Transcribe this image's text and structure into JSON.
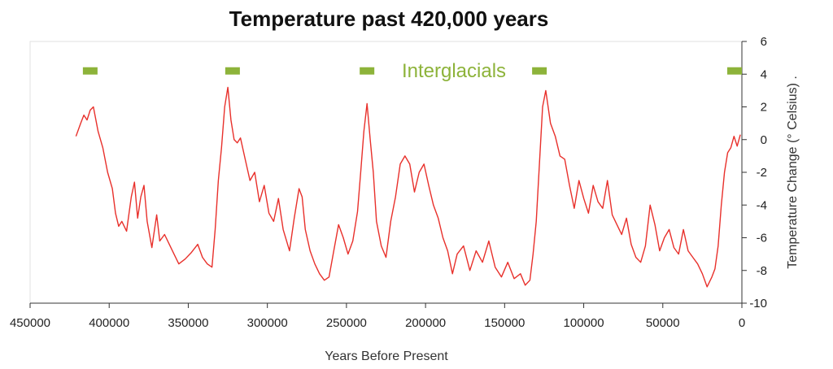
{
  "chart_data": {
    "type": "line",
    "title": "Temperature past 420,000 years",
    "xlabel": "Years Before Present",
    "ylabel": "Temperature Change (° Celsius) .",
    "x_reversed": true,
    "xlim": [
      450000,
      0
    ],
    "ylim": [
      -10,
      6
    ],
    "xticks": [
      450000,
      400000,
      350000,
      300000,
      250000,
      200000,
      150000,
      100000,
      50000,
      0
    ],
    "xtick_labels": [
      "450000",
      "400000",
      "350000",
      "300000",
      "250000",
      "200000",
      "150000",
      "100000",
      "50000",
      "0"
    ],
    "yticks": [
      6,
      4,
      2,
      0,
      -2,
      -4,
      -6,
      -8,
      -10
    ],
    "ytick_labels": [
      "6",
      "4",
      "2",
      "0",
      "-2",
      "-4",
      "-6",
      "-8",
      "-10"
    ],
    "y_axis_side": "right",
    "grid": false,
    "line_color": "#e8302b",
    "annotation": {
      "text": "Interglacials",
      "color": "#8db33a"
    },
    "interglacial_markers": [
      412000,
      322000,
      237000,
      128000,
      4500
    ],
    "series": [
      {
        "name": "",
        "x": [
          421000,
          418000,
          416000,
          414000,
          412000,
          410000,
          407000,
          404000,
          401000,
          398000,
          396000,
          394000,
          392000,
          389000,
          386000,
          384000,
          382000,
          380000,
          378000,
          376000,
          373000,
          370000,
          368000,
          365000,
          362000,
          359000,
          356000,
          352000,
          348000,
          344000,
          341000,
          338000,
          335000,
          333000,
          331000,
          329000,
          327000,
          325000,
          323000,
          321000,
          319000,
          317000,
          314000,
          311000,
          308000,
          305000,
          302000,
          299000,
          296000,
          293000,
          290000,
          286000,
          283000,
          280000,
          278000,
          276000,
          273000,
          270000,
          267000,
          264000,
          261000,
          258000,
          255000,
          252000,
          249000,
          246000,
          243000,
          241000,
          239000,
          237000,
          235000,
          233000,
          231000,
          228000,
          225000,
          222000,
          219000,
          216000,
          213000,
          210000,
          207000,
          204000,
          201000,
          198000,
          195000,
          192000,
          189000,
          186000,
          183000,
          180000,
          176000,
          172000,
          168000,
          164000,
          160000,
          156000,
          152000,
          148000,
          144000,
          140000,
          137000,
          134000,
          132000,
          130000,
          128000,
          126000,
          124000,
          121000,
          118000,
          115000,
          112000,
          109000,
          106000,
          103000,
          100000,
          97000,
          94000,
          91000,
          88000,
          85000,
          82000,
          79000,
          76000,
          73000,
          70000,
          67000,
          64000,
          61000,
          58000,
          55000,
          52000,
          49000,
          46000,
          43000,
          40000,
          37000,
          34000,
          31000,
          28000,
          25000,
          22000,
          19000,
          17000,
          15000,
          13000,
          11000,
          9000,
          7000,
          5000,
          3000,
          1000
        ],
        "y": [
          0.2,
          1.0,
          1.5,
          1.2,
          1.8,
          2.0,
          0.5,
          -0.5,
          -2.0,
          -3.0,
          -4.5,
          -5.3,
          -5.0,
          -5.6,
          -3.5,
          -2.6,
          -4.8,
          -3.5,
          -2.8,
          -5.0,
          -6.6,
          -4.6,
          -6.2,
          -5.8,
          -6.4,
          -7.0,
          -7.6,
          -7.3,
          -6.9,
          -6.4,
          -7.2,
          -7.6,
          -7.8,
          -5.5,
          -2.5,
          -0.5,
          2.0,
          3.2,
          1.2,
          0.0,
          -0.2,
          0.1,
          -1.2,
          -2.5,
          -2.0,
          -3.8,
          -2.8,
          -4.5,
          -5.0,
          -3.6,
          -5.5,
          -6.8,
          -4.8,
          -3.0,
          -3.5,
          -5.5,
          -6.8,
          -7.6,
          -8.2,
          -8.6,
          -8.4,
          -6.8,
          -5.2,
          -6.0,
          -7.0,
          -6.2,
          -4.4,
          -2.0,
          0.5,
          2.2,
          0.0,
          -2.0,
          -5.0,
          -6.5,
          -7.2,
          -5.0,
          -3.5,
          -1.5,
          -1.0,
          -1.5,
          -3.2,
          -2.0,
          -1.5,
          -2.8,
          -4.0,
          -4.8,
          -6.0,
          -6.8,
          -8.2,
          -7.0,
          -6.5,
          -8.0,
          -6.8,
          -7.5,
          -6.2,
          -7.8,
          -8.4,
          -7.5,
          -8.5,
          -8.2,
          -8.9,
          -8.6,
          -7.0,
          -5.0,
          -1.5,
          2.0,
          3.0,
          1.0,
          0.2,
          -1.0,
          -1.2,
          -2.8,
          -4.2,
          -2.5,
          -3.6,
          -4.5,
          -2.8,
          -3.8,
          -4.2,
          -2.5,
          -4.6,
          -5.2,
          -5.8,
          -4.8,
          -6.4,
          -7.2,
          -7.5,
          -6.5,
          -4.0,
          -5.2,
          -6.8,
          -6.0,
          -5.5,
          -6.6,
          -7.0,
          -5.5,
          -6.8,
          -7.2,
          -7.6,
          -8.2,
          -9.0,
          -8.4,
          -7.9,
          -6.5,
          -4.0,
          -2.0,
          -0.8,
          -0.5,
          0.2,
          -0.4,
          0.3
        ]
      }
    ]
  }
}
